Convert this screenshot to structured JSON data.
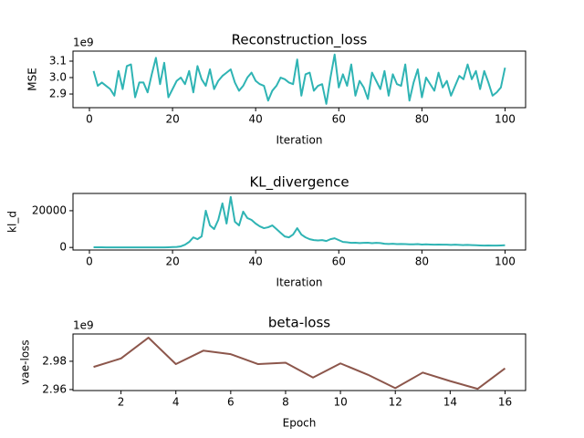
{
  "chart_data": [
    {
      "type": "line",
      "title": "Reconstruction_loss",
      "xlabel": "Iteration",
      "ylabel": "MSE",
      "y_offset_label": "1e9",
      "color": "#2fb4b4",
      "x": [
        1,
        2,
        3,
        4,
        5,
        6,
        7,
        8,
        9,
        10,
        11,
        12,
        13,
        14,
        15,
        16,
        17,
        18,
        19,
        20,
        21,
        22,
        23,
        24,
        25,
        26,
        27,
        28,
        29,
        30,
        31,
        32,
        33,
        34,
        35,
        36,
        37,
        38,
        39,
        40,
        41,
        42,
        43,
        44,
        45,
        46,
        47,
        48,
        49,
        50,
        51,
        52,
        53,
        54,
        55,
        56,
        57,
        58,
        59,
        60,
        61,
        62,
        63,
        64,
        65,
        66,
        67,
        68,
        69,
        70,
        71,
        72,
        73,
        74,
        75,
        76,
        77,
        78,
        79,
        80,
        81,
        82,
        83,
        84,
        85,
        86,
        87,
        88,
        89,
        90,
        91,
        92,
        93,
        94,
        95,
        96,
        97,
        98,
        99,
        100
      ],
      "values": [
        3.04,
        2.95,
        2.97,
        2.95,
        2.93,
        2.89,
        3.04,
        2.93,
        3.07,
        3.08,
        2.88,
        2.97,
        2.97,
        2.91,
        3.02,
        3.12,
        2.96,
        3.09,
        2.88,
        2.93,
        2.98,
        3.0,
        2.96,
        3.04,
        2.91,
        3.07,
        2.99,
        2.95,
        3.05,
        2.93,
        2.98,
        3.01,
        3.03,
        3.05,
        2.97,
        2.92,
        2.95,
        3.0,
        3.03,
        2.98,
        2.96,
        2.95,
        2.86,
        2.92,
        2.95,
        3.0,
        2.99,
        2.97,
        2.96,
        3.11,
        2.89,
        3.02,
        3.03,
        2.92,
        2.95,
        2.96,
        2.84,
        3.0,
        3.14,
        2.94,
        3.02,
        2.95,
        3.08,
        2.89,
        2.98,
        2.94,
        2.87,
        3.03,
        2.98,
        2.93,
        3.04,
        2.89,
        3.02,
        2.96,
        2.95,
        3.08,
        2.86,
        2.97,
        3.05,
        2.88,
        3.0,
        2.96,
        2.92,
        3.03,
        2.94,
        2.98,
        2.89,
        2.95,
        3.01,
        2.99,
        3.08,
        2.99,
        3.04,
        2.93,
        3.04,
        2.97,
        2.89,
        2.91,
        2.94,
        3.06
      ],
      "xlim": [
        -3.95,
        104.95
      ],
      "xticks": [
        0,
        20,
        40,
        60,
        80,
        100
      ],
      "ylim": [
        2.817,
        3.161
      ],
      "yticks": [
        2.9,
        {
          "value": 3,
          "label": "3.0"
        },
        3.1
      ]
    },
    {
      "type": "line",
      "title": "KL_divergence",
      "xlabel": "Iteration",
      "ylabel": "kl_d",
      "color": "#2fb4b4",
      "x": [
        1,
        2,
        3,
        4,
        5,
        6,
        7,
        8,
        9,
        10,
        11,
        12,
        13,
        14,
        15,
        16,
        17,
        18,
        19,
        20,
        21,
        22,
        23,
        24,
        25,
        26,
        27,
        28,
        29,
        30,
        31,
        32,
        33,
        34,
        35,
        36,
        37,
        38,
        39,
        40,
        41,
        42,
        43,
        44,
        45,
        46,
        47,
        48,
        49,
        50,
        51,
        52,
        53,
        54,
        55,
        56,
        57,
        58,
        59,
        60,
        61,
        62,
        63,
        64,
        65,
        66,
        67,
        68,
        69,
        70,
        71,
        72,
        73,
        74,
        75,
        76,
        77,
        78,
        79,
        80,
        81,
        82,
        83,
        84,
        85,
        86,
        87,
        88,
        89,
        90,
        91,
        92,
        93,
        94,
        95,
        96,
        97,
        98,
        99,
        100
      ],
      "values": [
        100,
        80,
        60,
        50,
        50,
        40,
        40,
        40,
        40,
        30,
        30,
        30,
        30,
        30,
        30,
        30,
        30,
        50,
        100,
        200,
        300,
        600,
        1500,
        3000,
        5500,
        4500,
        6000,
        20000,
        12000,
        10000,
        15000,
        24000,
        13000,
        27500,
        14000,
        12000,
        19500,
        16000,
        15000,
        13000,
        11500,
        10500,
        11000,
        12000,
        10000,
        8000,
        6000,
        5500,
        7000,
        10500,
        7000,
        5500,
        4500,
        4000,
        3800,
        4000,
        3500,
        4500,
        5000,
        4000,
        3000,
        2800,
        2500,
        2600,
        2400,
        2500,
        2600,
        2300,
        2500,
        2400,
        2000,
        1900,
        2000,
        1800,
        1900,
        1800,
        1700,
        1700,
        1800,
        1600,
        1700,
        1600,
        1500,
        1600,
        1500,
        1500,
        1400,
        1500,
        1400,
        1300,
        1400,
        1300,
        1200,
        1100,
        1000,
        1100,
        1000,
        1000,
        1100,
        1200
      ],
      "xlim": [
        -3.95,
        104.95
      ],
      "xticks": [
        0,
        20,
        40,
        60,
        80,
        100
      ],
      "ylim": [
        -1400,
        29400
      ],
      "yticks": [
        0,
        20000
      ]
    },
    {
      "type": "line",
      "title": "beta-loss",
      "xlabel": "Epoch",
      "ylabel": "vae-loss",
      "y_offset_label": "1e9",
      "color": "#8c564b",
      "x": [
        1,
        2,
        3,
        4,
        5,
        6,
        7,
        8,
        9,
        10,
        11,
        12,
        13,
        14,
        15,
        16
      ],
      "values": [
        2.976,
        2.982,
        2.9967,
        2.978,
        2.9875,
        2.985,
        2.978,
        2.979,
        2.9685,
        2.9785,
        2.9705,
        2.961,
        2.972,
        2.966,
        2.9605,
        2.975
      ],
      "xlim": [
        0.25,
        16.75
      ],
      "xticks": [
        2,
        4,
        6,
        8,
        10,
        12,
        14,
        16
      ],
      "ylim": [
        2.9593,
        2.9993
      ],
      "yticks": [
        2.96,
        2.98
      ]
    }
  ]
}
